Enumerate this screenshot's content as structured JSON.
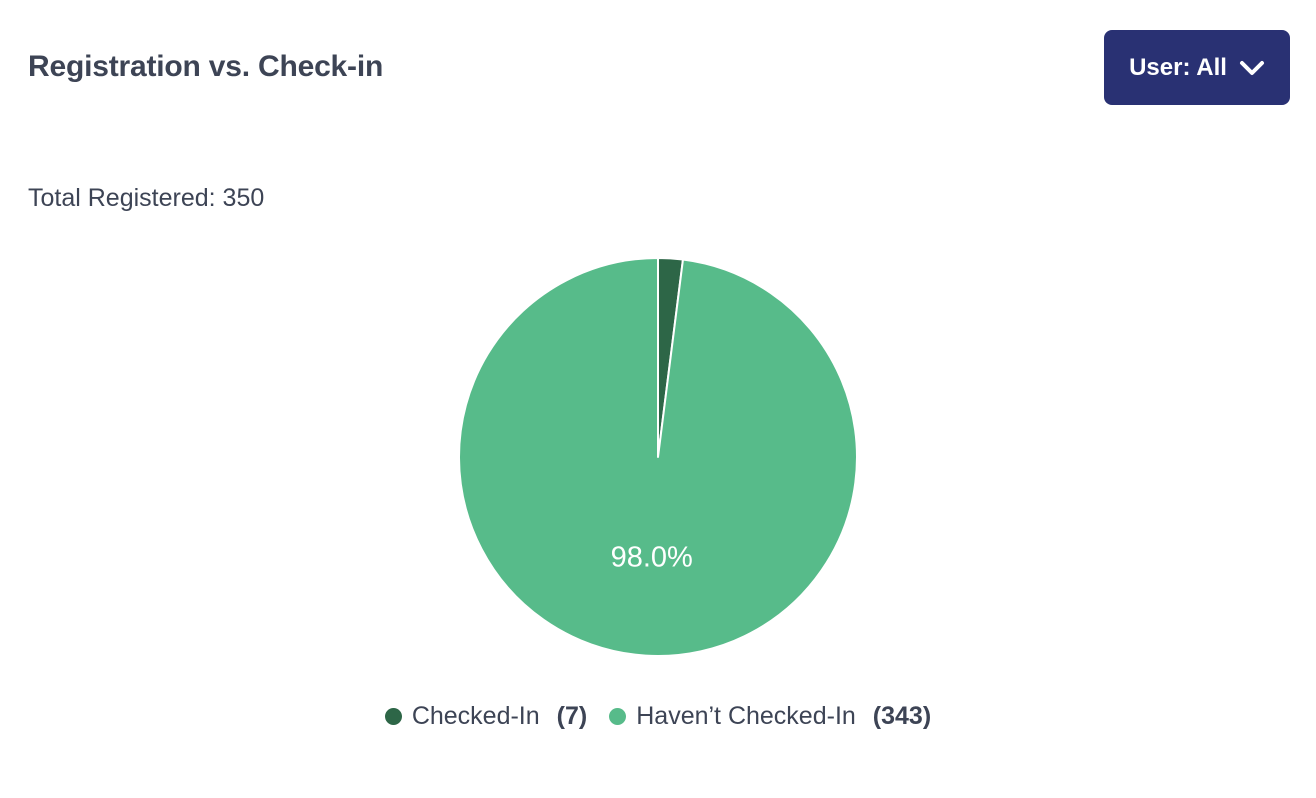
{
  "page": {
    "title": "Registration vs. Check-in"
  },
  "header": {
    "user_filter_button": {
      "label": "User: All",
      "icon": "chevron-down-icon"
    }
  },
  "summary": {
    "total_registered_label": "Total Registered: 350",
    "total_registered_value": 350
  },
  "chart_data": {
    "type": "pie",
    "title": "Registration vs. Check-in",
    "total": 350,
    "start_angle_deg": -90,
    "direction": "clockwise",
    "legend_position": "bottom",
    "slice_separator_color": "#ffffff",
    "percent_label_color": "#ffffff",
    "slices": [
      {
        "name": "Checked-In",
        "value": 7,
        "percent": 2.0,
        "count_label": "(7)",
        "color": "#2d6647",
        "percent_label": ""
      },
      {
        "name": "Haven’t Checked-In",
        "value": 343,
        "percent": 98.0,
        "count_label": "(343)",
        "color": "#57bb8a",
        "percent_label": "98.0%"
      }
    ]
  },
  "colors": {
    "accent_navy": "#293173",
    "text": "#3d4455",
    "background": "#ffffff",
    "checked_in_green": "#2d6647",
    "not_checked_in_green": "#57bb8a"
  }
}
